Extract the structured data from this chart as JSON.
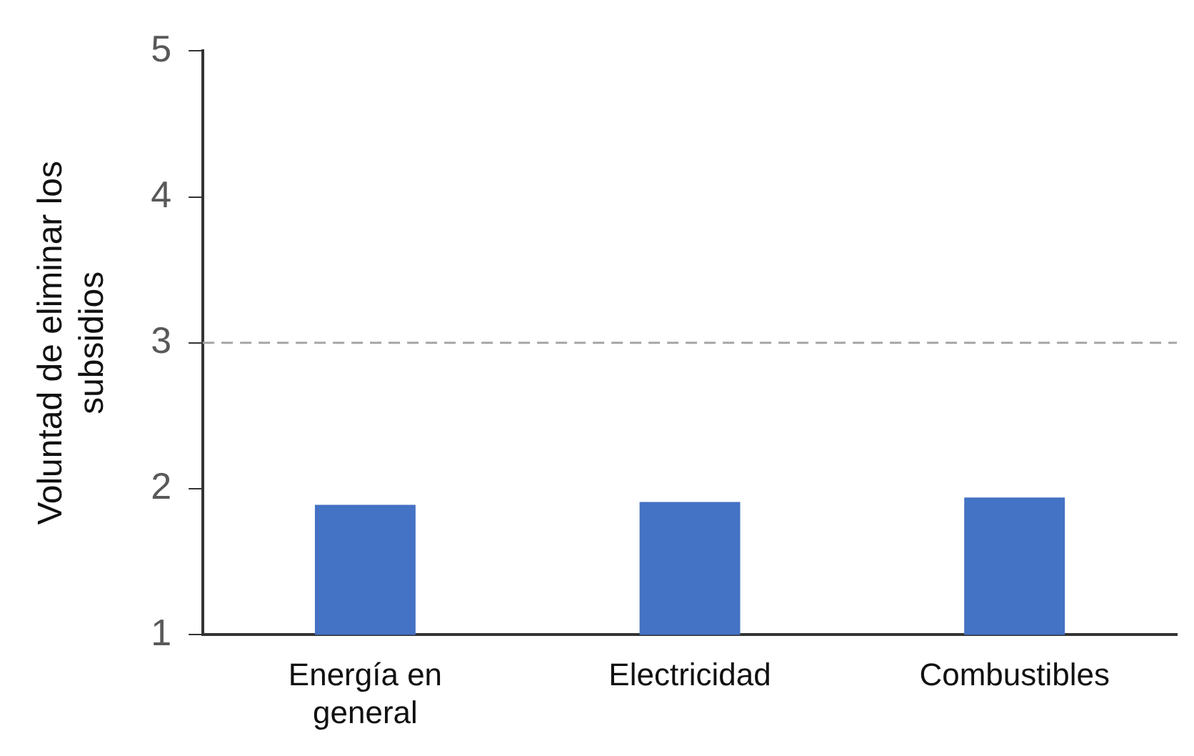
{
  "chart_data": {
    "type": "bar",
    "ylabel": "Voluntad de eliminar los subsidios",
    "categories": [
      "Energía en general",
      "Electricidad",
      "Combustibles"
    ],
    "values": [
      1.89,
      1.91,
      1.94
    ],
    "color": "#4472c4",
    "ylim": [
      1,
      5
    ],
    "yticks": [
      1,
      2,
      3,
      4,
      5
    ],
    "grid": false,
    "legend": false,
    "ref_lines": [
      {
        "axis": "y",
        "value": 3,
        "color": "#a6a6a6",
        "line_style": "dashed"
      }
    ]
  }
}
